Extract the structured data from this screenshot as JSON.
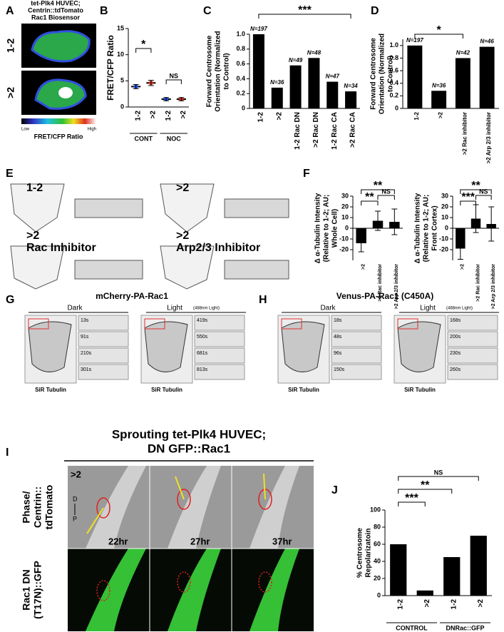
{
  "figure": {
    "A": {
      "letter": "A",
      "title": [
        "tet-Plk4 HUVEC;",
        "Centrin::tdTomato",
        "Rac1 Biosensor"
      ],
      "rows": [
        "1-2",
        ">2"
      ],
      "low": "Low",
      "high": "High",
      "scale": "FRET/CFP Ratio"
    },
    "E": {
      "letter": "E",
      "labels": [
        [
          "1-2"
        ],
        [
          ">2"
        ],
        [
          ">2",
          "Rac Inhibitor"
        ],
        [
          ">2",
          "Arp2/3 Inhibitor"
        ]
      ]
    },
    "G": {
      "letter": "G",
      "title": "mCherry-PA-Rac1",
      "dark": "Dark",
      "light": "Light",
      "light_note": "(488nm Light)",
      "dark_times": [
        "13s",
        "91s",
        "210s",
        "301s"
      ],
      "light_times": [
        "419s",
        "550s",
        "681s",
        "813s"
      ],
      "stain": [
        "SiR Tubulin",
        "SiR Tubulin"
      ]
    },
    "H": {
      "letter": "H",
      "title": "Venus-PA-Rac1 (C450A)",
      "dark": "Dark",
      "light": "Light",
      "light_note": "(488nm Light)",
      "dark_times": [
        "18s",
        "48s",
        "96s",
        "150s"
      ],
      "light_times": [
        "168s",
        "200s",
        "230s",
        "260s"
      ],
      "stain": [
        "SiR Tubulin",
        "SiR Tubulin"
      ]
    },
    "I": {
      "letter": "I",
      "title": [
        "Sprouting tet-Plk4 HUVEC;",
        "DN GFP::Rac1"
      ],
      "condition": ">2",
      "axis": [
        "D",
        "P"
      ],
      "times": [
        "22hr",
        "27hr",
        "37hr"
      ],
      "row_labels": [
        [
          "Phase/",
          "Centrin::",
          "tdTomato"
        ],
        [
          "Rac1 DN",
          "(T17N)::GFP"
        ]
      ]
    }
  },
  "chart_data": [
    {
      "panel": "B",
      "type": "dot",
      "ylabel": [
        "FRET/CFP Ratio"
      ],
      "categories": [
        "1-2",
        ">2",
        "1-2",
        ">2"
      ],
      "groups": [
        "CONT",
        "NOC"
      ],
      "values": [
        3.9,
        4.6,
        1.5,
        1.5
      ],
      "errors": [
        0.4,
        0.5,
        0.3,
        0.3
      ],
      "colors": [
        "#2050e0",
        "#e8281e",
        "#2050e0",
        "#e8281e"
      ],
      "ylim": [
        0,
        15
      ],
      "yticks": [
        0,
        5,
        10,
        15
      ],
      "annotations": [
        "*",
        "NS"
      ]
    },
    {
      "panel": "C",
      "type": "bar",
      "ylabel": [
        "Forward Centrosome",
        "Orientation (Normalized",
        "to Control)"
      ],
      "categories": [
        "1-2",
        ">2",
        "1-2 Rac DN",
        ">2 Rac DN",
        "1-2 Rac CA",
        ">2 Rac CA"
      ],
      "values": [
        1.0,
        0.28,
        0.58,
        0.68,
        0.36,
        0.23
      ],
      "n_labels": [
        "N=197",
        "N=36",
        "N=49",
        "N=48",
        "N=47",
        "N=34"
      ],
      "color": "#000000",
      "ylim": [
        0,
        1
      ],
      "yticks": [
        0,
        0.2,
        0.4,
        0.6,
        0.8,
        {
          "value": 1,
          "label": "1.0"
        }
      ],
      "annotations": [
        "***"
      ]
    },
    {
      "panel": "D",
      "type": "bar",
      "ylabel": [
        "Forward Centrosome",
        "Orientation (Normalized",
        "to Control)"
      ],
      "categories": [
        "1-2",
        ">2",
        ">2 Rac inhibitor",
        ">2 Arp 2/3 inhibitor"
      ],
      "values": [
        1.0,
        0.28,
        0.8,
        0.98
      ],
      "n_labels": [
        "N=197",
        "N=36",
        "N=42",
        "N=46"
      ],
      "color": "#000000",
      "ylim": [
        0,
        1.1
      ],
      "yticks": [
        0,
        0.2,
        0.4,
        0.6,
        0.8,
        {
          "value": 1,
          "label": "1.0"
        }
      ],
      "annotations": [
        "*"
      ]
    },
    {
      "panel": "F",
      "type": "bar",
      "ylabel": [
        "Δ α-Tubulin Intensity",
        "(Relative to 1-2; AU;",
        "Whole Cell)"
      ],
      "categories": [
        ">2",
        ">2 Rac inhibitor",
        ">2 Arp 2/3 inhibitor"
      ],
      "values": [
        -14,
        7,
        6
      ],
      "errors": [
        8,
        9,
        12
      ],
      "color": "#000000",
      "ylim": [
        -30,
        30
      ],
      "yticks": [
        -20,
        -10,
        0,
        10,
        20,
        30
      ],
      "annotations": [
        "**",
        "**",
        "NS"
      ]
    },
    {
      "type": "bar",
      "ylabel": [
        "Δ α-Tubulin Intensity",
        "(Relative to 1-2; AU;",
        "Front Cortex)"
      ],
      "categories": [
        ">2",
        ">2 Rac inhibitor",
        ">2 Arp 2/3 inhibitor"
      ],
      "values": [
        -19,
        9,
        4
      ],
      "errors": [
        10,
        13,
        16
      ],
      "color": "#000000",
      "ylim": [
        -30,
        30
      ],
      "yticks": [
        -20,
        -10,
        0,
        10,
        20,
        30
      ],
      "annotations": [
        "**",
        "***",
        "NS"
      ]
    },
    {
      "panel": "J",
      "type": "bar",
      "ylabel": [
        "% Centrosome",
        "Repolarizatoin"
      ],
      "categories": [
        "1-2",
        ">2",
        "1-2",
        ">2"
      ],
      "groups": [
        "CONTROL",
        "DNRac::GFP"
      ],
      "values": [
        60,
        6,
        45,
        70
      ],
      "color": "#000000",
      "ylim": [
        0,
        100
      ],
      "yticks": [
        0,
        20,
        40,
        60,
        80,
        100
      ],
      "annotations": [
        "NS",
        "**",
        "***"
      ]
    }
  ]
}
